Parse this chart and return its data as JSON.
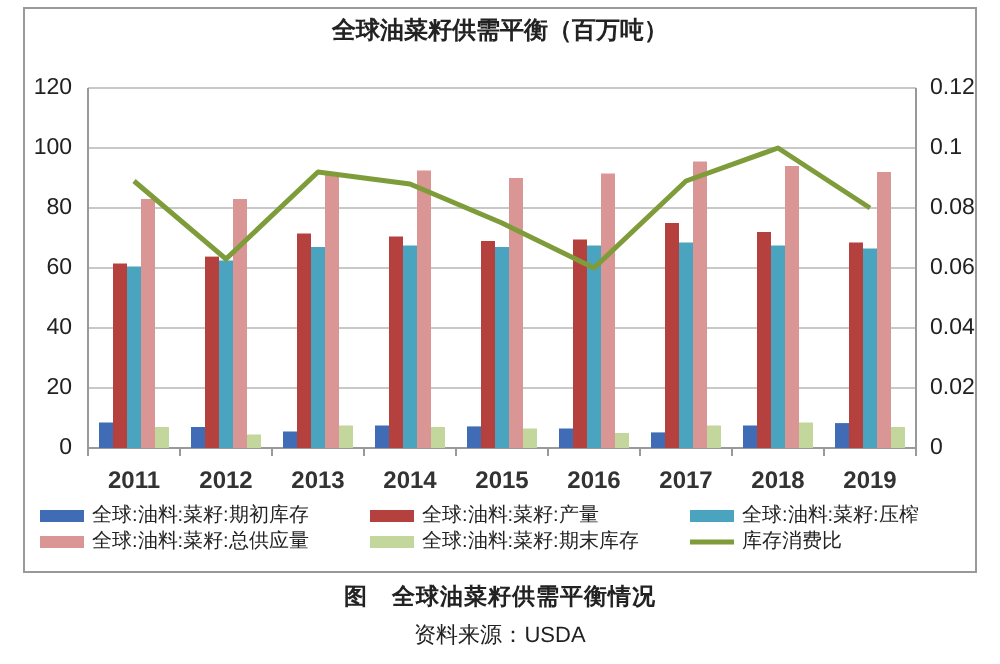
{
  "chart_data": {
    "type": "bar",
    "title": "全球油菜籽供需平衡（百万吨）",
    "categories": [
      "2011",
      "2012",
      "2013",
      "2014",
      "2015",
      "2016",
      "2017",
      "2018",
      "2019"
    ],
    "series": [
      {
        "name": "全球:油料:菜籽:期初库存",
        "color": "#3f6cb4",
        "values": [
          8.5,
          7,
          5.5,
          7.5,
          7.2,
          6.5,
          5.2,
          7.5,
          8.3
        ]
      },
      {
        "name": "全球:油料:菜籽:产量",
        "color": "#b5413e",
        "values": [
          61.5,
          63.8,
          71.5,
          70.5,
          69,
          69.5,
          75,
          72,
          68.5
        ]
      },
      {
        "name": "全球:油料:菜籽:压榨",
        "color": "#4aa3bf",
        "values": [
          60.5,
          62.5,
          67,
          67.5,
          67,
          67.5,
          68.5,
          67.5,
          66.5
        ]
      },
      {
        "name": "全球:油料:菜籽:总供应量",
        "color": "#d99694",
        "values": [
          83,
          83,
          91,
          92.5,
          90,
          91.5,
          95.5,
          94,
          92
        ]
      },
      {
        "name": "全球:油料:菜籽:期末库存",
        "color": "#c3d69b",
        "values": [
          7,
          4.5,
          7.5,
          7,
          6.5,
          5,
          7.5,
          8.5,
          7
        ]
      },
      {
        "name": "库存消费比",
        "type": "line",
        "axis": "y2",
        "color": "#7f9c3a",
        "values": [
          0.089,
          0.063,
          0.092,
          0.088,
          0.075,
          0.06,
          0.089,
          0.1,
          0.08
        ]
      }
    ],
    "ylim": [
      0,
      120
    ],
    "yticks": [
      0,
      20,
      40,
      60,
      80,
      100,
      120
    ],
    "y2lim": [
      0,
      0.12
    ],
    "y2ticks": [
      0,
      0.02,
      0.04,
      0.06,
      0.08,
      0.1,
      0.12
    ],
    "grid": "y",
    "legend": "bottom",
    "marker": "none",
    "annotations": [
      "图　全球油菜籽供需平衡情况",
      "资料来源：USDA"
    ]
  }
}
